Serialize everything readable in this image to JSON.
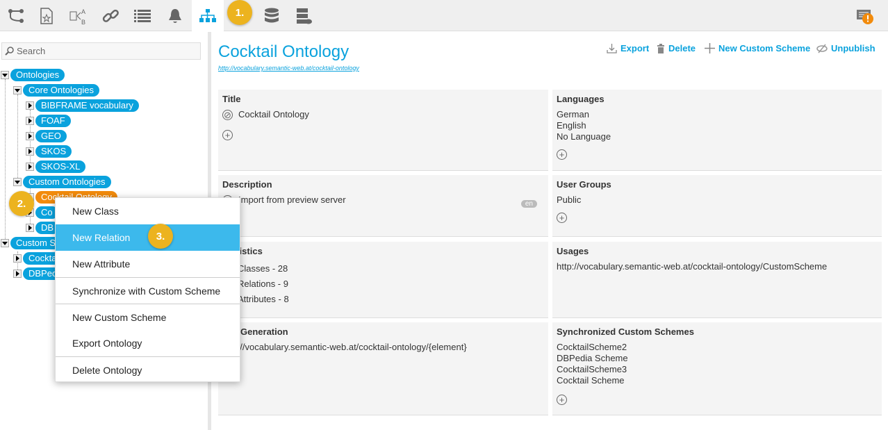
{
  "toolbar": {
    "icons": [
      "workflow-icon",
      "favorite-document-icon",
      "compare-ab-icon",
      "link-icon",
      "list-icon",
      "bell-icon",
      "hierarchy-icon",
      "database-icon",
      "server-icon"
    ],
    "active": "hierarchy-icon",
    "notification_icon": "alert-list-icon",
    "accent": "#0aa2dd"
  },
  "steps": {
    "one": "1.",
    "two": "2.",
    "three": "3."
  },
  "sidebar": {
    "search_placeholder": "Search",
    "tree": {
      "ontologies": "Ontologies",
      "core": "Core Ontologies",
      "core_items": [
        "BIBFRAME vocabulary",
        "FOAF",
        "GEO",
        "SKOS",
        "SKOS-XL"
      ],
      "custom": "Custom Ontologies",
      "custom_items": [
        "Cocktail Ontology",
        "Co",
        "DB"
      ],
      "schemes": "Custom Schemes",
      "scheme_items": [
        "Cocktail Scheme",
        "DBPedia Scheme"
      ]
    }
  },
  "context_menu": {
    "items": [
      "New Class",
      "New Relation",
      "New Attribute",
      "Synchronize with Custom Scheme",
      "New Custom Scheme",
      "Export Ontology",
      "Delete Ontology"
    ],
    "highlighted": "New Relation"
  },
  "main": {
    "title": "Cocktail Ontology",
    "uri": "http://vocabulary.semantic-web.at/cocktail-ontology",
    "actions": {
      "export": "Export",
      "delete": "Delete",
      "new_scheme": "New Custom Scheme",
      "unpublish": "Unpublish"
    },
    "panels": {
      "title": {
        "label": "Title",
        "value": "Cocktail Ontology"
      },
      "languages": {
        "label": "Languages",
        "values": [
          "German",
          "English",
          "No Language"
        ]
      },
      "description": {
        "label": "Description",
        "value": "Import from preview server",
        "lang": "en"
      },
      "user_groups": {
        "label": "User Groups",
        "values": [
          "Public"
        ]
      },
      "statistics": {
        "label": "Statistics",
        "values": [
          "Classes - 28",
          "Relations - 9",
          "Attributes - 8"
        ]
      },
      "usages": {
        "label": "Usages",
        "values": [
          "http://vocabulary.semantic-web.at/cocktail-ontology/CustomScheme"
        ]
      },
      "uri_generation": {
        "label": "URI Generation",
        "value": "http://vocabulary.semantic-web.at/cocktail-ontology/{element}"
      },
      "sync": {
        "label": "Synchronized Custom Schemes",
        "values": [
          "CocktailScheme2",
          "DBPedia Scheme",
          "CocktailScheme3",
          "Cocktail Scheme"
        ]
      }
    }
  }
}
